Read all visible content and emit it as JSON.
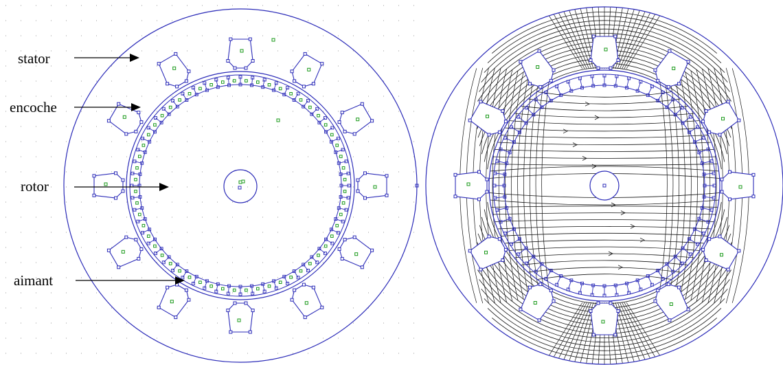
{
  "labels": {
    "stator": "stator",
    "encoche": "encoche",
    "rotor": "rotor",
    "aimant": "aimant"
  },
  "colors": {
    "outline": "#2b2bb8",
    "magnet": "#1a9a1a",
    "flux": "#111111",
    "text": "#000000"
  },
  "stator_slots": 12,
  "rotor_magnets": 56
}
